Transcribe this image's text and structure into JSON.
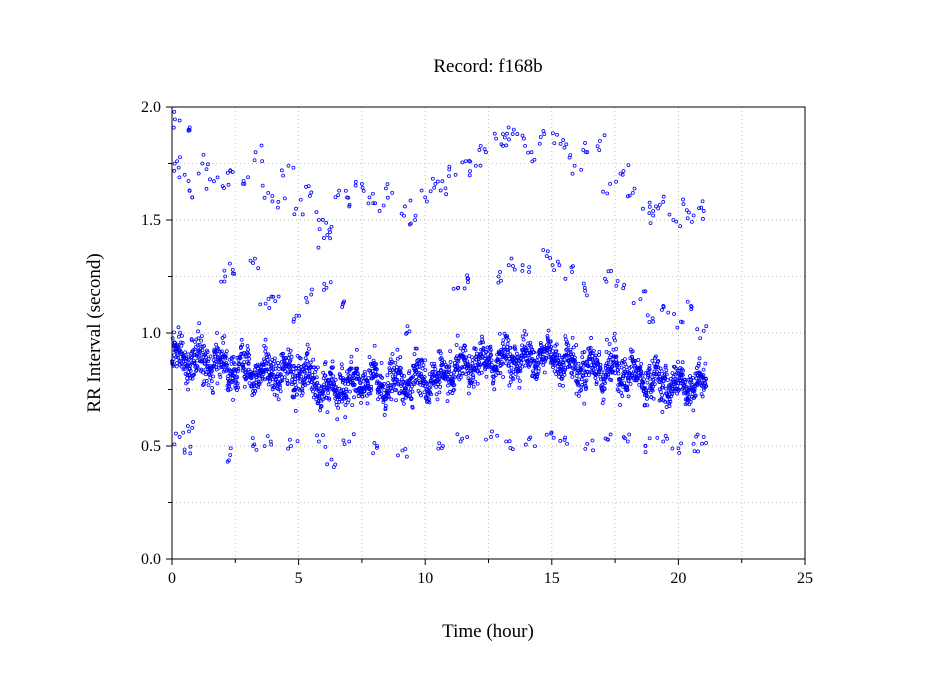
{
  "chart_data": {
    "type": "scatter",
    "title": "Record:  f168b",
    "xlabel": "Time (hour)",
    "ylabel": "RR Interval (second)",
    "xlim": [
      0,
      25
    ],
    "ylim": [
      0,
      2.0
    ],
    "x_ticks": [
      0,
      5,
      10,
      15,
      20,
      25
    ],
    "x_tick_labels": [
      "0",
      "5",
      "10",
      "15",
      "20",
      "25"
    ],
    "y_ticks": [
      0,
      0.5,
      1.0,
      1.5,
      2.0
    ],
    "y_tick_labels": [
      "0.0",
      "0.5",
      "1.0",
      "1.5",
      "2.0"
    ],
    "x_minor_step": 2.5,
    "y_minor_step": 0.25,
    "grid": true,
    "marker": "open-circle",
    "series": [
      {
        "color": "#0000ff",
        "main_band": [
          [
            0.0,
            0.89,
            0.1
          ],
          [
            0.5,
            0.88,
            0.11
          ],
          [
            1.0,
            0.88,
            0.11
          ],
          [
            1.5,
            0.86,
            0.1
          ],
          [
            2.0,
            0.86,
            0.1
          ],
          [
            2.5,
            0.85,
            0.1
          ],
          [
            3.0,
            0.84,
            0.1
          ],
          [
            3.5,
            0.83,
            0.1
          ],
          [
            4.0,
            0.82,
            0.1
          ],
          [
            4.5,
            0.82,
            0.1
          ],
          [
            5.0,
            0.82,
            0.1
          ],
          [
            5.5,
            0.8,
            0.1
          ],
          [
            6.0,
            0.74,
            0.1
          ],
          [
            6.5,
            0.76,
            0.1
          ],
          [
            7.0,
            0.77,
            0.1
          ],
          [
            7.5,
            0.78,
            0.1
          ],
          [
            8.0,
            0.78,
            0.1
          ],
          [
            8.5,
            0.77,
            0.1
          ],
          [
            9.0,
            0.78,
            0.1
          ],
          [
            9.5,
            0.8,
            0.1
          ],
          [
            10.0,
            0.8,
            0.1
          ],
          [
            10.5,
            0.79,
            0.1
          ],
          [
            11.0,
            0.82,
            0.1
          ],
          [
            11.5,
            0.84,
            0.09
          ],
          [
            12.0,
            0.86,
            0.09
          ],
          [
            12.5,
            0.87,
            0.09
          ],
          [
            13.0,
            0.89,
            0.09
          ],
          [
            13.5,
            0.89,
            0.09
          ],
          [
            14.0,
            0.88,
            0.09
          ],
          [
            14.5,
            0.9,
            0.09
          ],
          [
            15.0,
            0.9,
            0.09
          ],
          [
            15.5,
            0.88,
            0.09
          ],
          [
            16.0,
            0.84,
            0.1
          ],
          [
            16.5,
            0.85,
            0.1
          ],
          [
            17.0,
            0.84,
            0.1
          ],
          [
            17.5,
            0.84,
            0.1
          ],
          [
            18.0,
            0.82,
            0.1
          ],
          [
            18.5,
            0.8,
            0.09
          ],
          [
            19.0,
            0.79,
            0.09
          ],
          [
            19.5,
            0.78,
            0.09
          ],
          [
            20.0,
            0.77,
            0.08
          ],
          [
            20.5,
            0.77,
            0.08
          ],
          [
            21.1,
            0.77,
            0.08
          ]
        ],
        "upper_band": [
          [
            0.2,
            1.76
          ],
          [
            0.3,
            1.94
          ],
          [
            0.5,
            1.7
          ],
          [
            0.7,
            1.91
          ],
          [
            0.8,
            1.6
          ],
          [
            1.2,
            1.75
          ],
          [
            1.5,
            1.68
          ],
          [
            2.0,
            1.65
          ],
          [
            2.3,
            1.72
          ],
          [
            2.8,
            1.66
          ],
          [
            3.3,
            1.8
          ],
          [
            3.8,
            1.62
          ],
          [
            4.2,
            1.58
          ],
          [
            4.6,
            1.74
          ],
          [
            4.9,
            1.55
          ],
          [
            5.4,
            1.65
          ],
          [
            5.8,
            1.5
          ],
          [
            6.0,
            1.42
          ],
          [
            6.3,
            1.47
          ],
          [
            6.6,
            1.63
          ],
          [
            7.0,
            1.56
          ],
          [
            7.5,
            1.66
          ],
          [
            7.8,
            1.6
          ],
          [
            8.2,
            1.54
          ],
          [
            8.7,
            1.62
          ],
          [
            9.2,
            1.56
          ],
          [
            9.6,
            1.5
          ],
          [
            10.0,
            1.6
          ],
          [
            10.4,
            1.66
          ],
          [
            10.8,
            1.64
          ],
          [
            11.2,
            1.7
          ],
          [
            11.6,
            1.76
          ],
          [
            12.0,
            1.74
          ],
          [
            12.4,
            1.8
          ],
          [
            12.8,
            1.86
          ],
          [
            13.2,
            1.83
          ],
          [
            13.5,
            1.9
          ],
          [
            13.9,
            1.86
          ],
          [
            14.2,
            1.8
          ],
          [
            14.7,
            1.88
          ],
          [
            15.1,
            1.84
          ],
          [
            15.5,
            1.82
          ],
          [
            15.9,
            1.74
          ],
          [
            16.4,
            1.8
          ],
          [
            16.9,
            1.85
          ],
          [
            17.3,
            1.66
          ],
          [
            17.8,
            1.7
          ],
          [
            18.2,
            1.62
          ],
          [
            18.6,
            1.55
          ],
          [
            19.0,
            1.52
          ],
          [
            19.4,
            1.58
          ],
          [
            19.8,
            1.5
          ],
          [
            20.2,
            1.57
          ],
          [
            20.6,
            1.52
          ],
          [
            21.0,
            1.54
          ]
        ],
        "mid_band": [
          [
            2.1,
            1.25
          ],
          [
            2.4,
            1.28
          ],
          [
            3.2,
            1.31
          ],
          [
            3.7,
            1.13
          ],
          [
            4.0,
            1.16
          ],
          [
            4.8,
            1.05
          ],
          [
            5.5,
            1.17
          ],
          [
            6.1,
            1.2
          ],
          [
            6.8,
            1.14
          ],
          [
            9.3,
            1.03
          ],
          [
            11.3,
            1.2
          ],
          [
            11.7,
            1.24
          ],
          [
            12.9,
            1.25
          ],
          [
            13.3,
            1.3
          ],
          [
            14.1,
            1.27
          ],
          [
            14.8,
            1.34
          ],
          [
            15.3,
            1.3
          ],
          [
            15.8,
            1.27
          ],
          [
            16.3,
            1.2
          ],
          [
            17.1,
            1.24
          ],
          [
            17.6,
            1.23
          ],
          [
            18.5,
            1.15
          ],
          [
            19.0,
            1.05
          ],
          [
            19.6,
            1.09
          ],
          [
            20.1,
            1.05
          ],
          [
            20.5,
            1.12
          ],
          [
            21.0,
            1.01
          ]
        ],
        "lower_band": [
          [
            0.3,
            0.54
          ],
          [
            0.5,
            0.47
          ],
          [
            0.8,
            0.58
          ],
          [
            2.3,
            0.46
          ],
          [
            3.2,
            0.5
          ],
          [
            3.9,
            0.52
          ],
          [
            4.7,
            0.5
          ],
          [
            5.8,
            0.52
          ],
          [
            6.3,
            0.44
          ],
          [
            7.0,
            0.52
          ],
          [
            8.1,
            0.5
          ],
          [
            9.1,
            0.48
          ],
          [
            10.7,
            0.5
          ],
          [
            11.4,
            0.52
          ],
          [
            12.6,
            0.54
          ],
          [
            13.2,
            0.52
          ],
          [
            14.1,
            0.53
          ],
          [
            14.8,
            0.55
          ],
          [
            15.6,
            0.51
          ],
          [
            16.4,
            0.51
          ],
          [
            17.2,
            0.53
          ],
          [
            18.0,
            0.52
          ],
          [
            18.7,
            0.5
          ],
          [
            19.4,
            0.52
          ],
          [
            20.0,
            0.49
          ],
          [
            20.6,
            0.51
          ],
          [
            21.0,
            0.54
          ]
        ]
      }
    ]
  }
}
